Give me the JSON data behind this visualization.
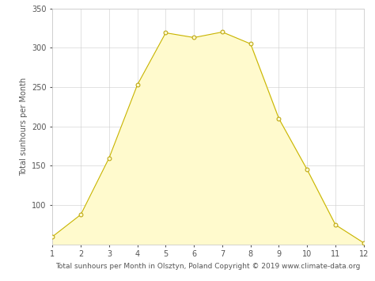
{
  "months": [
    1,
    2,
    3,
    4,
    5,
    6,
    7,
    8,
    9,
    10,
    11,
    12
  ],
  "sunhours": [
    60,
    88,
    160,
    253,
    319,
    313,
    320,
    305,
    210,
    145,
    75,
    52
  ],
  "fill_color": "#FFFACD",
  "line_color": "#C8B400",
  "marker_color": "#FFFACD",
  "marker_edge_color": "#B8A000",
  "grid_color": "#cccccc",
  "xlabel": "Total sunhours per Month in Olsztyn, Poland Copyright © 2019 www.climate-data.org",
  "ylabel": "Total sunhours per Month",
  "ylim": [
    50,
    350
  ],
  "yticks": [
    100,
    150,
    200,
    250,
    300,
    350
  ],
  "xlim": [
    1,
    12
  ],
  "xticks": [
    1,
    2,
    3,
    4,
    5,
    6,
    7,
    8,
    9,
    10,
    11,
    12
  ],
  "xlabel_fontsize": 6.5,
  "ylabel_fontsize": 7,
  "tick_fontsize": 7,
  "line_width": 0.8,
  "marker_size": 3.5
}
